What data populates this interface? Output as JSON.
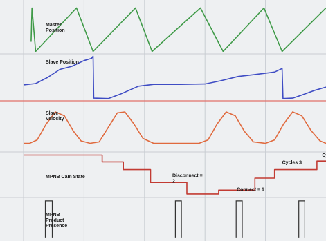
{
  "chart_data": {
    "type": "line",
    "title": "",
    "xlabel": "",
    "grid": true,
    "x_range": [
      0,
      10
    ],
    "x_gridlines": [
      2,
      4,
      6,
      8
    ],
    "colors": {
      "master": "#3f9a48",
      "slave_pos": "#3e4cc4",
      "slave_vel": "#e06a3e",
      "cam": "#c23b33",
      "presence": "#333333",
      "grid": "#c9cdd2",
      "band_sep": "#e2706a"
    },
    "tracks": [
      {
        "id": "master",
        "series_name": "Master Position",
        "label_lines": [
          "Master",
          "Position"
        ],
        "tick_labels": [
          "",
          ""
        ],
        "y_range": [
          0,
          1
        ],
        "points": [
          [
            0.25,
            0.25
          ],
          [
            0.28,
            0.95
          ],
          [
            0.4,
            0.05
          ],
          [
            1.75,
            0.95
          ],
          [
            2.3,
            0.05
          ],
          [
            3.7,
            0.95
          ],
          [
            4.25,
            0.05
          ],
          [
            5.85,
            0.95
          ],
          [
            6.6,
            0.05
          ],
          [
            7.95,
            0.95
          ],
          [
            8.55,
            0.05
          ],
          [
            10,
            0.95
          ]
        ]
      },
      {
        "id": "slave_pos",
        "series_name": "Slave Position",
        "label_lines": [
          "Slave Position"
        ],
        "tick_labels": [
          "",
          ""
        ],
        "y_range": [
          0,
          1
        ],
        "points": [
          [
            0,
            0.33
          ],
          [
            0.4,
            0.36
          ],
          [
            0.8,
            0.5
          ],
          [
            1.2,
            0.68
          ],
          [
            1.6,
            0.75
          ],
          [
            2.0,
            0.88
          ],
          [
            2.25,
            0.93
          ],
          [
            2.3,
            0.98
          ],
          [
            2.32,
            0.03
          ],
          [
            2.8,
            0.02
          ],
          [
            3.2,
            0.12
          ],
          [
            3.8,
            0.3
          ],
          [
            4.3,
            0.34
          ],
          [
            5.2,
            0.34
          ],
          [
            6.0,
            0.35
          ],
          [
            6.5,
            0.42
          ],
          [
            7.1,
            0.52
          ],
          [
            7.6,
            0.56
          ],
          [
            8.3,
            0.62
          ],
          [
            8.55,
            0.7
          ],
          [
            8.58,
            0.02
          ],
          [
            8.9,
            0.03
          ],
          [
            9.2,
            0.1
          ],
          [
            9.6,
            0.2
          ],
          [
            10,
            0.28
          ]
        ]
      },
      {
        "id": "slave_vel",
        "series_name": "Slave Velocity",
        "label_lines": [
          "Slave",
          "Velocity"
        ],
        "tick_labels": [
          "",
          ""
        ],
        "y_range": [
          0,
          1
        ],
        "points": [
          [
            0,
            0.15
          ],
          [
            0.2,
            0.15
          ],
          [
            0.45,
            0.22
          ],
          [
            0.75,
            0.55
          ],
          [
            1.05,
            0.8
          ],
          [
            1.35,
            0.72
          ],
          [
            1.65,
            0.4
          ],
          [
            1.9,
            0.2
          ],
          [
            2.2,
            0.15
          ],
          [
            2.5,
            0.18
          ],
          [
            2.8,
            0.48
          ],
          [
            3.1,
            0.78
          ],
          [
            3.35,
            0.8
          ],
          [
            3.65,
            0.55
          ],
          [
            3.95,
            0.25
          ],
          [
            4.3,
            0.15
          ],
          [
            5.8,
            0.15
          ],
          [
            6.1,
            0.22
          ],
          [
            6.4,
            0.55
          ],
          [
            6.7,
            0.8
          ],
          [
            7.0,
            0.72
          ],
          [
            7.3,
            0.4
          ],
          [
            7.6,
            0.18
          ],
          [
            8.0,
            0.15
          ],
          [
            8.3,
            0.22
          ],
          [
            8.6,
            0.55
          ],
          [
            8.9,
            0.8
          ],
          [
            9.2,
            0.72
          ],
          [
            9.5,
            0.42
          ],
          [
            9.8,
            0.2
          ],
          [
            10,
            0.15
          ]
        ]
      },
      {
        "id": "cam",
        "series_name": "MPNB Cam State",
        "label_lines": [
          "MPNB Cam State"
        ],
        "tick_labels": [
          "",
          ""
        ],
        "y_range": [
          0,
          1
        ],
        "points": [
          [
            0,
            0.96
          ],
          [
            2.6,
            0.96
          ],
          [
            2.6,
            0.8
          ],
          [
            3.3,
            0.8
          ],
          [
            3.3,
            0.62
          ],
          [
            4.2,
            0.62
          ],
          [
            4.2,
            0.32
          ],
          [
            5.4,
            0.32
          ],
          [
            5.4,
            0.05
          ],
          [
            6.45,
            0.05
          ],
          [
            6.45,
            0.14
          ],
          [
            7.65,
            0.14
          ],
          [
            7.65,
            0.42
          ],
          [
            8.3,
            0.42
          ],
          [
            8.3,
            0.62
          ],
          [
            9.7,
            0.62
          ],
          [
            9.7,
            0.82
          ],
          [
            10,
            0.82
          ]
        ]
      },
      {
        "id": "presence",
        "series_name": "MPNB Product Presence",
        "label_lines": [
          "MPNB",
          "Product",
          "Presence"
        ],
        "tick_labels": [],
        "y_range": [
          0,
          1
        ],
        "pulses": [
          [
            0.72,
            0.95
          ],
          [
            5.02,
            5.22
          ],
          [
            7.03,
            7.23
          ],
          [
            9.1,
            9.3
          ]
        ],
        "pulse_high": 0.95,
        "pulse_low": 0.02
      }
    ],
    "annotations": [
      {
        "track": "cam",
        "lines": [
          "Disconnect = ",
          "2"
        ],
        "at": [
          4.92,
          0.44
        ]
      },
      {
        "track": "cam",
        "lines": [
          "Connect = 1"
        ],
        "at": [
          7.05,
          0.12
        ]
      },
      {
        "track": "cam",
        "lines": [
          "Cycles 3"
        ],
        "at": [
          8.55,
          0.75
        ]
      },
      {
        "track": "cam",
        "lines": [
          "Cycl"
        ],
        "at": [
          9.87,
          0.92
        ]
      }
    ]
  }
}
